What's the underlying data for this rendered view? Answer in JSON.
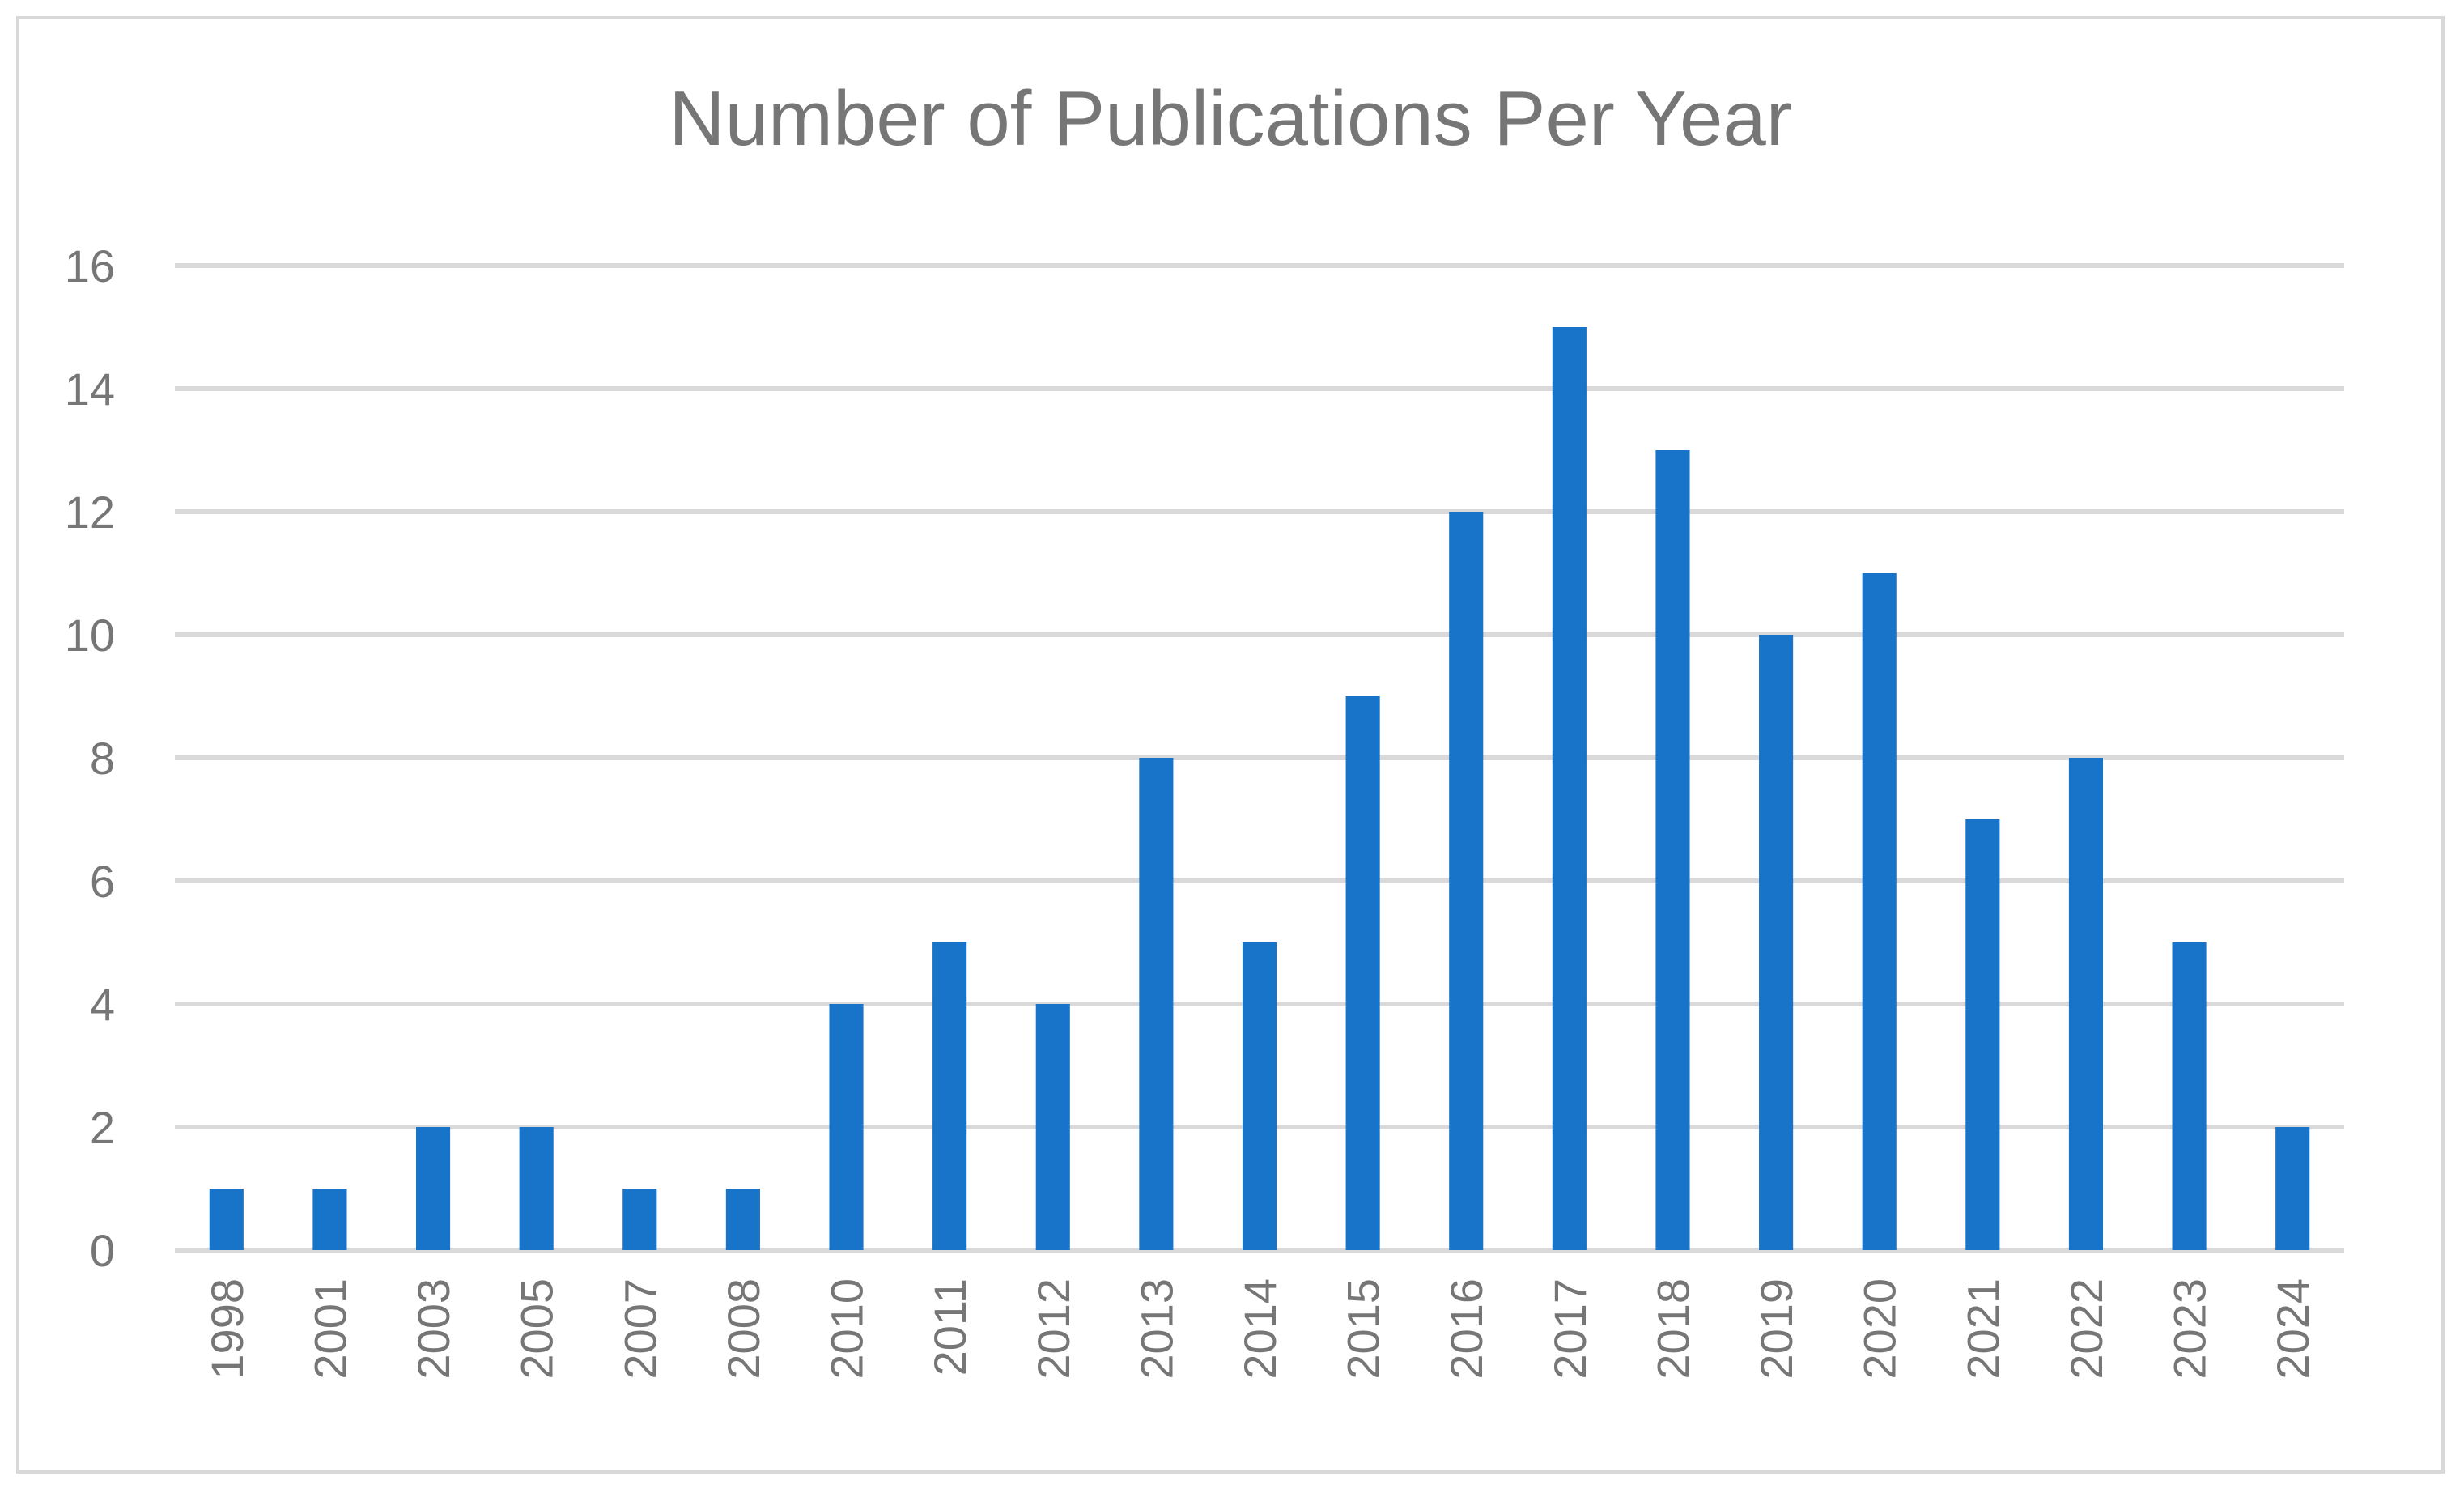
{
  "chart_data": {
    "type": "bar",
    "title": "Number of Publications Per Year",
    "xlabel": "",
    "ylabel": "",
    "categories": [
      "1998",
      "2001",
      "2003",
      "2005",
      "2007",
      "2008",
      "2010",
      "2011",
      "2012",
      "2013",
      "2014",
      "2015",
      "2016",
      "2017",
      "2018",
      "2019",
      "2020",
      "2021",
      "2022",
      "2023",
      "2024"
    ],
    "values": [
      1,
      1,
      2,
      2,
      1,
      1,
      4,
      5,
      4,
      8,
      5,
      9,
      12,
      15,
      13,
      10,
      11,
      7,
      8,
      5,
      2
    ],
    "ylim": [
      0,
      16
    ],
    "yticks": [
      "0",
      "2",
      "4",
      "6",
      "8",
      "10",
      "12",
      "14",
      "16"
    ],
    "grid": true,
    "legend": "none",
    "bar_color": "#1874c8",
    "grid_color": "#d9d9d9",
    "text_color": "#767676"
  }
}
